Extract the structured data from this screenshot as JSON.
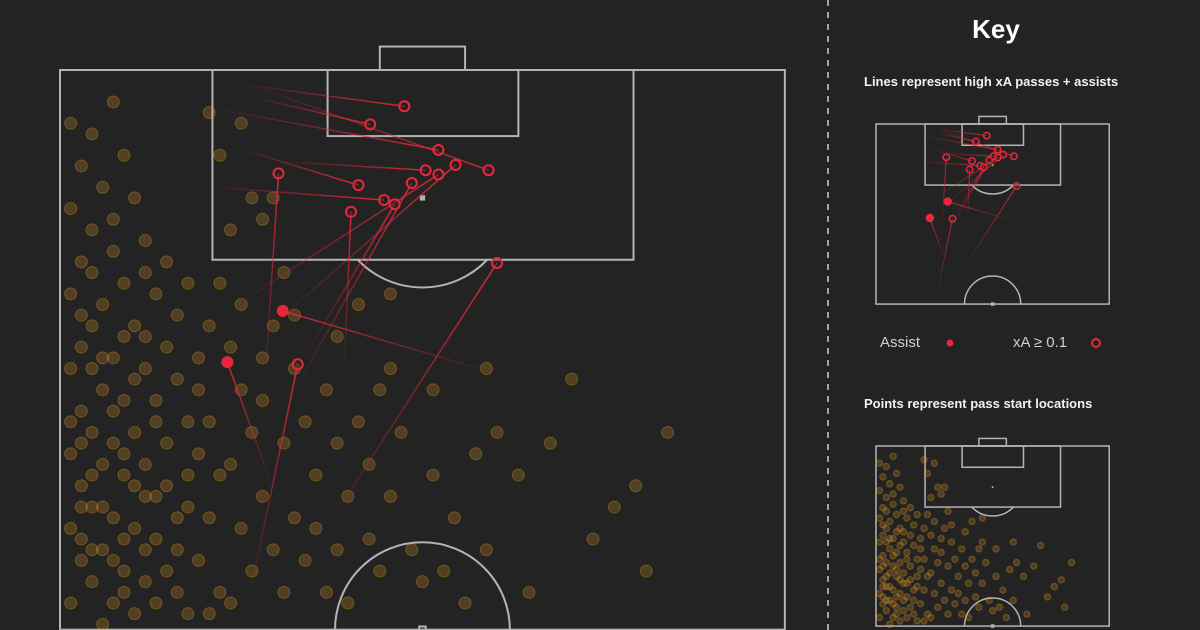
{
  "key": {
    "title": "Key",
    "lines_caption": "Lines represent high xA passes + assists",
    "points_caption": "Points represent pass start locations",
    "legend": [
      {
        "label": "Assist",
        "marker": "filled-dot"
      },
      {
        "label": "xA ≥ 0.1",
        "marker": "ring"
      }
    ]
  },
  "colors": {
    "background": "#232323",
    "lines": "#b4b4b4",
    "pass": "#e8283a",
    "points": "#f5a623"
  },
  "chart_data": {
    "type": "scatter",
    "pitch": "half-pitch, attacking upward, metres (x across 0-68, y from goal line 0-52.5)",
    "passes": [
      {
        "type": "xA",
        "start": [
          17.4,
          1.4
        ],
        "end": [
          32.3,
          3.4
        ]
      },
      {
        "type": "xA",
        "start": [
          18.3,
          2.6
        ],
        "end": [
          29.1,
          5.1
        ]
      },
      {
        "type": "xA",
        "start": [
          14.4,
          3.6
        ],
        "end": [
          35.5,
          7.5
        ]
      },
      {
        "type": "xA",
        "start": [
          18.8,
          1.7
        ],
        "end": [
          40.2,
          9.4
        ]
      },
      {
        "type": "xA",
        "start": [
          20.9,
          8.6
        ],
        "end": [
          34.3,
          9.4
        ]
      },
      {
        "type": "xA",
        "start": [
          21.6,
          22.5
        ],
        "end": [
          37.1,
          8.9
        ]
      },
      {
        "type": "xA",
        "start": [
          17.2,
          7.5
        ],
        "end": [
          28.0,
          10.8
        ]
      },
      {
        "type": "xA",
        "start": [
          19.3,
          28.1
        ],
        "end": [
          20.5,
          9.7
        ]
      },
      {
        "type": "xA",
        "start": [
          14.7,
          11.0
        ],
        "end": [
          30.4,
          12.2
        ]
      },
      {
        "type": "xA",
        "start": [
          23.5,
          26.0
        ],
        "end": [
          31.4,
          12.6
        ]
      },
      {
        "type": "xA",
        "start": [
          22.5,
          29.1
        ],
        "end": [
          33.0,
          10.6
        ]
      },
      {
        "type": "xA",
        "start": [
          17.2,
          21.6
        ],
        "end": [
          35.5,
          9.8
        ]
      },
      {
        "type": "xA",
        "start": [
          26.7,
          27.2
        ],
        "end": [
          27.3,
          13.3
        ]
      },
      {
        "type": "xA",
        "start": [
          25.8,
          41.7
        ],
        "end": [
          41.0,
          18.1
        ]
      },
      {
        "type": "assist",
        "start": [
          40.3,
          28.3
        ],
        "end": [
          20.9,
          22.6
        ]
      },
      {
        "type": "assist",
        "start": [
          19.7,
          38.5
        ],
        "end": [
          15.7,
          27.4
        ]
      },
      {
        "type": "xA",
        "start": [
          18.0,
          48.3
        ],
        "end": [
          22.3,
          27.6
        ]
      }
    ],
    "pass_starts": [
      [
        1,
        5
      ],
      [
        3,
        6
      ],
      [
        5,
        3
      ],
      [
        2,
        9
      ],
      [
        6,
        8
      ],
      [
        4,
        11
      ],
      [
        1,
        13
      ],
      [
        7,
        12
      ],
      [
        3,
        15
      ],
      [
        5,
        17
      ],
      [
        2,
        18
      ],
      [
        8,
        16
      ],
      [
        6,
        20
      ],
      [
        1,
        21
      ],
      [
        4,
        22
      ],
      [
        9,
        21
      ],
      [
        3,
        24
      ],
      [
        7,
        24
      ],
      [
        2,
        26
      ],
      [
        5,
        27
      ],
      [
        10,
        26
      ],
      [
        1,
        28
      ],
      [
        8,
        28
      ],
      [
        4,
        30
      ],
      [
        6,
        31
      ],
      [
        2,
        32
      ],
      [
        9,
        31
      ],
      [
        11,
        29
      ],
      [
        3,
        34
      ],
      [
        7,
        34
      ],
      [
        5,
        35
      ],
      [
        1,
        36
      ],
      [
        10,
        35
      ],
      [
        4,
        37
      ],
      [
        8,
        37
      ],
      [
        2,
        39
      ],
      [
        6,
        38
      ],
      [
        12,
        38
      ],
      [
        3,
        41
      ],
      [
        9,
        40
      ],
      [
        5,
        42
      ],
      [
        1,
        43
      ],
      [
        7,
        43
      ],
      [
        11,
        42
      ],
      [
        4,
        45
      ],
      [
        2,
        46
      ],
      [
        8,
        45
      ],
      [
        6,
        47
      ],
      [
        10,
        47
      ],
      [
        3,
        48
      ],
      [
        1,
        50
      ],
      [
        5,
        50
      ],
      [
        9,
        50
      ],
      [
        7,
        51
      ],
      [
        12,
        51
      ],
      [
        4,
        52
      ],
      [
        2,
        44
      ],
      [
        6,
        44
      ],
      [
        3,
        28
      ],
      [
        7,
        29
      ],
      [
        9,
        33
      ],
      [
        5,
        32
      ],
      [
        12,
        33
      ],
      [
        3,
        38
      ],
      [
        8,
        40
      ],
      [
        4,
        41
      ],
      [
        11,
        45
      ],
      [
        6,
        49
      ],
      [
        2,
        41
      ],
      [
        10,
        39
      ],
      [
        1,
        33
      ],
      [
        13,
        36
      ],
      [
        12,
        41
      ],
      [
        8,
        48
      ],
      [
        5,
        46
      ],
      [
        3,
        45
      ],
      [
        7,
        39
      ],
      [
        9,
        44
      ],
      [
        2,
        35
      ],
      [
        6,
        36
      ],
      [
        4,
        27
      ],
      [
        11,
        23
      ],
      [
        8,
        25
      ],
      [
        13,
        27
      ],
      [
        6,
        25
      ],
      [
        3,
        19
      ],
      [
        10,
        18
      ],
      [
        12,
        20
      ],
      [
        14,
        24
      ],
      [
        2,
        23
      ],
      [
        5,
        14
      ],
      [
        8,
        19
      ],
      [
        13,
        30
      ],
      [
        14,
        33
      ],
      [
        15,
        38
      ],
      [
        14,
        42
      ],
      [
        13,
        46
      ],
      [
        15,
        49
      ],
      [
        11,
        49
      ],
      [
        14,
        51
      ],
      [
        16,
        26
      ],
      [
        17,
        30
      ],
      [
        18,
        34
      ],
      [
        16,
        37
      ],
      [
        19,
        40
      ],
      [
        17,
        43
      ],
      [
        18,
        47
      ],
      [
        16,
        50
      ],
      [
        20,
        45
      ],
      [
        21,
        35
      ],
      [
        19,
        31
      ],
      [
        22,
        28
      ],
      [
        20,
        24
      ],
      [
        17,
        22
      ],
      [
        23,
        33
      ],
      [
        24,
        38
      ],
      [
        22,
        42
      ],
      [
        21,
        49
      ],
      [
        23,
        46
      ],
      [
        25,
        30
      ],
      [
        26,
        35
      ],
      [
        24,
        43
      ],
      [
        27,
        40
      ],
      [
        26,
        45
      ],
      [
        28,
        33
      ],
      [
        29,
        37
      ],
      [
        25,
        49
      ],
      [
        27,
        50
      ],
      [
        19,
        27
      ],
      [
        15,
        20
      ],
      [
        16,
        15
      ],
      [
        18,
        12
      ],
      [
        15,
        8
      ],
      [
        14,
        4
      ],
      [
        17,
        5
      ],
      [
        19,
        14
      ],
      [
        21,
        19
      ],
      [
        20,
        12
      ],
      [
        22,
        23
      ],
      [
        30,
        30
      ],
      [
        32,
        34
      ],
      [
        31,
        40
      ],
      [
        33,
        45
      ],
      [
        35,
        38
      ],
      [
        37,
        42
      ],
      [
        34,
        48
      ],
      [
        30,
        47
      ],
      [
        29,
        44
      ],
      [
        31,
        28
      ],
      [
        36,
        47
      ],
      [
        38,
        50
      ],
      [
        40,
        45
      ],
      [
        41,
        34
      ],
      [
        43,
        38
      ],
      [
        46,
        35
      ],
      [
        48,
        29
      ],
      [
        52,
        41
      ],
      [
        55,
        47
      ],
      [
        57,
        34
      ],
      [
        54,
        39
      ],
      [
        50,
        44
      ],
      [
        40,
        28
      ],
      [
        44,
        49
      ],
      [
        39,
        36
      ],
      [
        35,
        30
      ],
      [
        26,
        25
      ],
      [
        28,
        22
      ],
      [
        31,
        21
      ]
    ]
  }
}
